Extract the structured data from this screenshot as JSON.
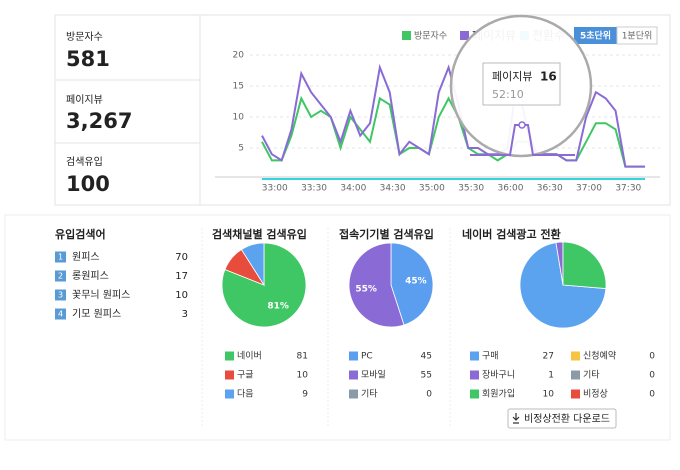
{
  "stats": [
    {
      "label": "방문자수",
      "value": "581"
    },
    {
      "label": "페이지뷰",
      "value": "3,267"
    },
    {
      "label": "검색유입",
      "value": "100"
    }
  ],
  "traffic_chart": {
    "type": "line",
    "ylim": [
      0,
      20
    ],
    "yticks": [
      5,
      10,
      15,
      20
    ],
    "xlim": [
      0,
      39
    ],
    "xticks": [
      {
        "value": 1.3,
        "label": "33:00"
      },
      {
        "value": 5.3,
        "label": "33:30"
      },
      {
        "value": 9.3,
        "label": "34:00"
      },
      {
        "value": 13.3,
        "label": "34:30"
      },
      {
        "value": 17.3,
        "label": "35:00"
      },
      {
        "value": 21.3,
        "label": "35:30"
      },
      {
        "value": 25.3,
        "label": "36:00"
      },
      {
        "value": 29.3,
        "label": "36:30"
      },
      {
        "value": 33.3,
        "label": "37:00"
      },
      {
        "value": 37.3,
        "label": "37:30"
      }
    ],
    "grid": true,
    "series": [
      {
        "name": "방문자수",
        "color": "#3ec764",
        "values": [
          6,
          3,
          3,
          7,
          13,
          10,
          11,
          10,
          5,
          10,
          8,
          6,
          13,
          12,
          4,
          5,
          5,
          4,
          10,
          13,
          10,
          5,
          4,
          4,
          3,
          4,
          6,
          6,
          4,
          4,
          4,
          3,
          3,
          6,
          9,
          9,
          8,
          2,
          2,
          2
        ]
      },
      {
        "name": "페이지뷰",
        "color": "#8a6bd6",
        "values": [
          7,
          4,
          3,
          8,
          17,
          14,
          12,
          10,
          6,
          11,
          7,
          9,
          18,
          14,
          4,
          6,
          5,
          4,
          14,
          18,
          12,
          5,
          5,
          4,
          4,
          5,
          16,
          8,
          4,
          4,
          4,
          3,
          3,
          10,
          14,
          13,
          11,
          2,
          2,
          2
        ]
      },
      {
        "name": "전환수",
        "color": "#34d3e0",
        "values": [
          0,
          0,
          0,
          0,
          0,
          0,
          0,
          0,
          0,
          0,
          0,
          0,
          0,
          0,
          0,
          0,
          0,
          0,
          0,
          0,
          0,
          0,
          0,
          0,
          0,
          0,
          0,
          0,
          0,
          0,
          0,
          0,
          0,
          0,
          0,
          0,
          0,
          0,
          0,
          0
        ]
      }
    ],
    "buttons": [
      "5초단위",
      "1분단위"
    ],
    "tooltip": {
      "label": "페이지뷰",
      "value": 16,
      "time": "52:10"
    }
  },
  "keywords": {
    "title": "유입검색어",
    "rows": [
      {
        "rank": 1,
        "name": "원피스",
        "value": 70
      },
      {
        "rank": 2,
        "name": "롱원피스",
        "value": 17
      },
      {
        "rank": 3,
        "name": "꽃무늬 원피스",
        "value": 10
      },
      {
        "rank": 4,
        "name": "기모 원피스",
        "value": 3
      }
    ]
  },
  "pies": [
    {
      "type": "pie",
      "title": "검색채널별 검색유입",
      "categories": [
        "네이버",
        "구글",
        "다음"
      ],
      "values": [
        81,
        10,
        9
      ],
      "value_labels": [
        "81%",
        null,
        null
      ],
      "colors": [
        "#3ec764",
        "#e84c3d",
        "#5ba2ef"
      ]
    },
    {
      "type": "pie",
      "title": "접속기기별 검색유입",
      "categories": [
        "PC",
        "모바일",
        "기타"
      ],
      "values": [
        45,
        55,
        0
      ],
      "value_labels": [
        "45%",
        "55%",
        null
      ],
      "colors": [
        "#5b9ef0",
        "#8a6bd6",
        "#8a9aa8"
      ]
    },
    {
      "type": "pie",
      "title": "네이버 검색광고 전환",
      "categories": [
        "구매",
        "장바구니",
        "회원가입",
        "신청예약",
        "기타",
        "비정상"
      ],
      "values": [
        27,
        1,
        10,
        0,
        0,
        0
      ],
      "value_labels": [
        null,
        null,
        null,
        null,
        null,
        null
      ],
      "colors": [
        "#5ba2ef",
        "#8a6bd6",
        "#3ec764",
        "#f6c342",
        "#8a9aa8",
        "#e84c3d"
      ]
    }
  ],
  "download": "비정상전환 다운로드"
}
